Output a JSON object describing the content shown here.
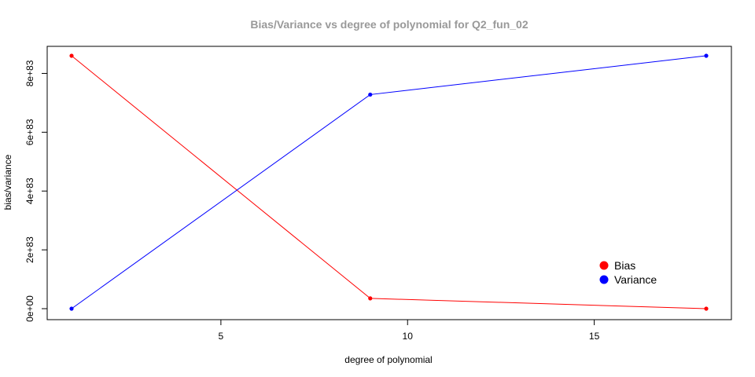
{
  "chart_data": {
    "type": "line",
    "title": "Bias/Variance vs degree of polynomial for Q2_fun_02",
    "xlabel": "degree of polynomial",
    "ylabel": "bias/variance",
    "x_ticks": [
      5,
      10,
      15
    ],
    "x_tick_labels": [
      "5",
      "10",
      "15"
    ],
    "y_ticks": [
      0,
      2e+83,
      4e+83,
      6e+83,
      8e+83
    ],
    "y_tick_labels": [
      "0e+00",
      "2e+83",
      "4e+83",
      "6e+83",
      "8e+83"
    ],
    "xlim": [
      1,
      18
    ],
    "ylim": [
      0,
      8.6e+83
    ],
    "grid": false,
    "legend_position": "bottom-right",
    "x": [
      1,
      9,
      18
    ],
    "series": [
      {
        "name": "Bias",
        "color": "#ff0000",
        "values": [
          8.6e+83,
          3.5e+82,
          0
        ]
      },
      {
        "name": "Variance",
        "color": "#0000ff",
        "values": [
          0,
          7.28e+83,
          8.6e+83
        ]
      }
    ]
  }
}
